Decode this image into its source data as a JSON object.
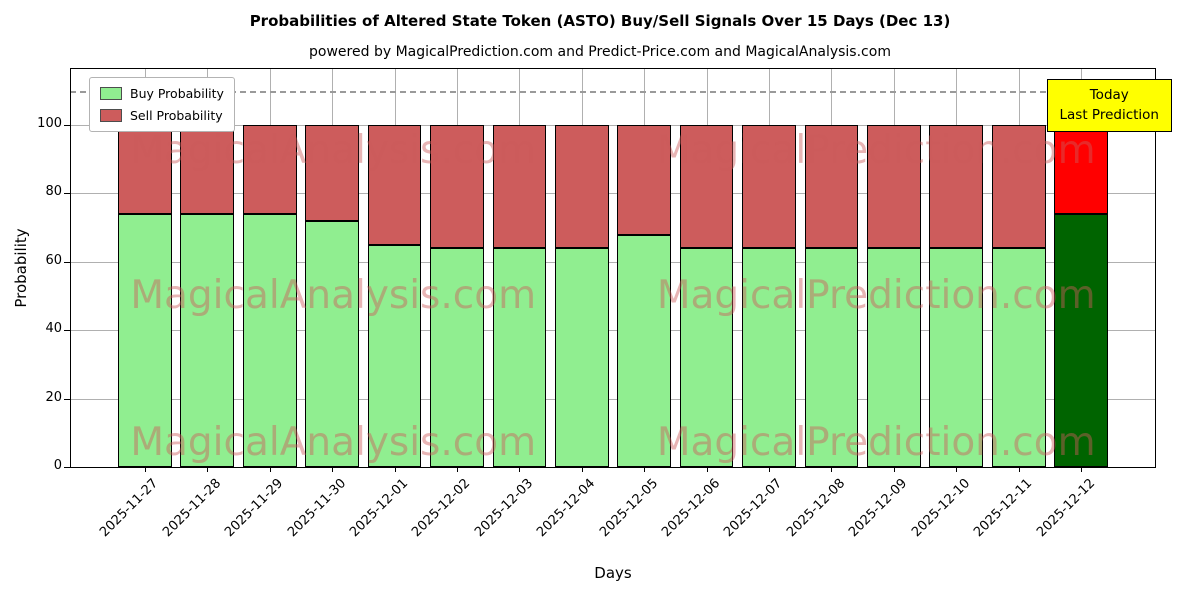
{
  "title": "Probabilities of Altered State Token (ASTO) Buy/Sell Signals Over 15 Days (Dec 13)",
  "subtitle": "powered by MagicalPrediction.com and Predict-Price.com and MagicalAnalysis.com",
  "legend": {
    "buy": "Buy Probability",
    "sell": "Sell Probability"
  },
  "annotation": {
    "line1": "Today",
    "line2": "Last Prediction"
  },
  "axes": {
    "xlabel": "Days",
    "ylabel": "Probability",
    "yticks": [
      0,
      20,
      40,
      60,
      80,
      100
    ],
    "ylim": [
      0,
      116.7
    ],
    "dashed_line_y": 110,
    "grid": true
  },
  "watermark": {
    "left": "MagicalAnalysis.com",
    "right": "MagicalPrediction.com"
  },
  "colors": {
    "buy": "#90ee90",
    "sell": "#cd5c5c",
    "today_buy": "#006400",
    "today_sell": "#ff0000",
    "annotation_bg": "#ffff00",
    "grid": "#b0b0b0",
    "watermark": "rgba(205,92,92,0.45)"
  },
  "chart_data": {
    "type": "bar",
    "stacked": true,
    "title": "Probabilities of Altered State Token (ASTO) Buy/Sell Signals Over 15 Days (Dec 13)",
    "xlabel": "Days",
    "ylabel": "Probability",
    "ylim": [
      0,
      116.7
    ],
    "legend_position": "upper left",
    "today_index": 15,
    "categories": [
      "2025-11-27",
      "2025-11-28",
      "2025-11-29",
      "2025-11-30",
      "2025-12-01",
      "2025-12-02",
      "2025-12-03",
      "2025-12-04",
      "2025-12-05",
      "2025-12-06",
      "2025-12-07",
      "2025-12-08",
      "2025-12-09",
      "2025-12-10",
      "2025-12-11",
      "2025-12-12"
    ],
    "series": [
      {
        "name": "Buy Probability",
        "values": [
          74,
          74,
          74,
          72,
          65,
          64,
          64,
          64,
          68,
          64,
          64,
          64,
          64,
          64,
          64,
          74
        ]
      },
      {
        "name": "Sell Probability",
        "values": [
          26,
          26,
          26,
          28,
          35,
          36,
          36,
          36,
          32,
          36,
          36,
          36,
          36,
          36,
          36,
          26
        ]
      }
    ]
  }
}
